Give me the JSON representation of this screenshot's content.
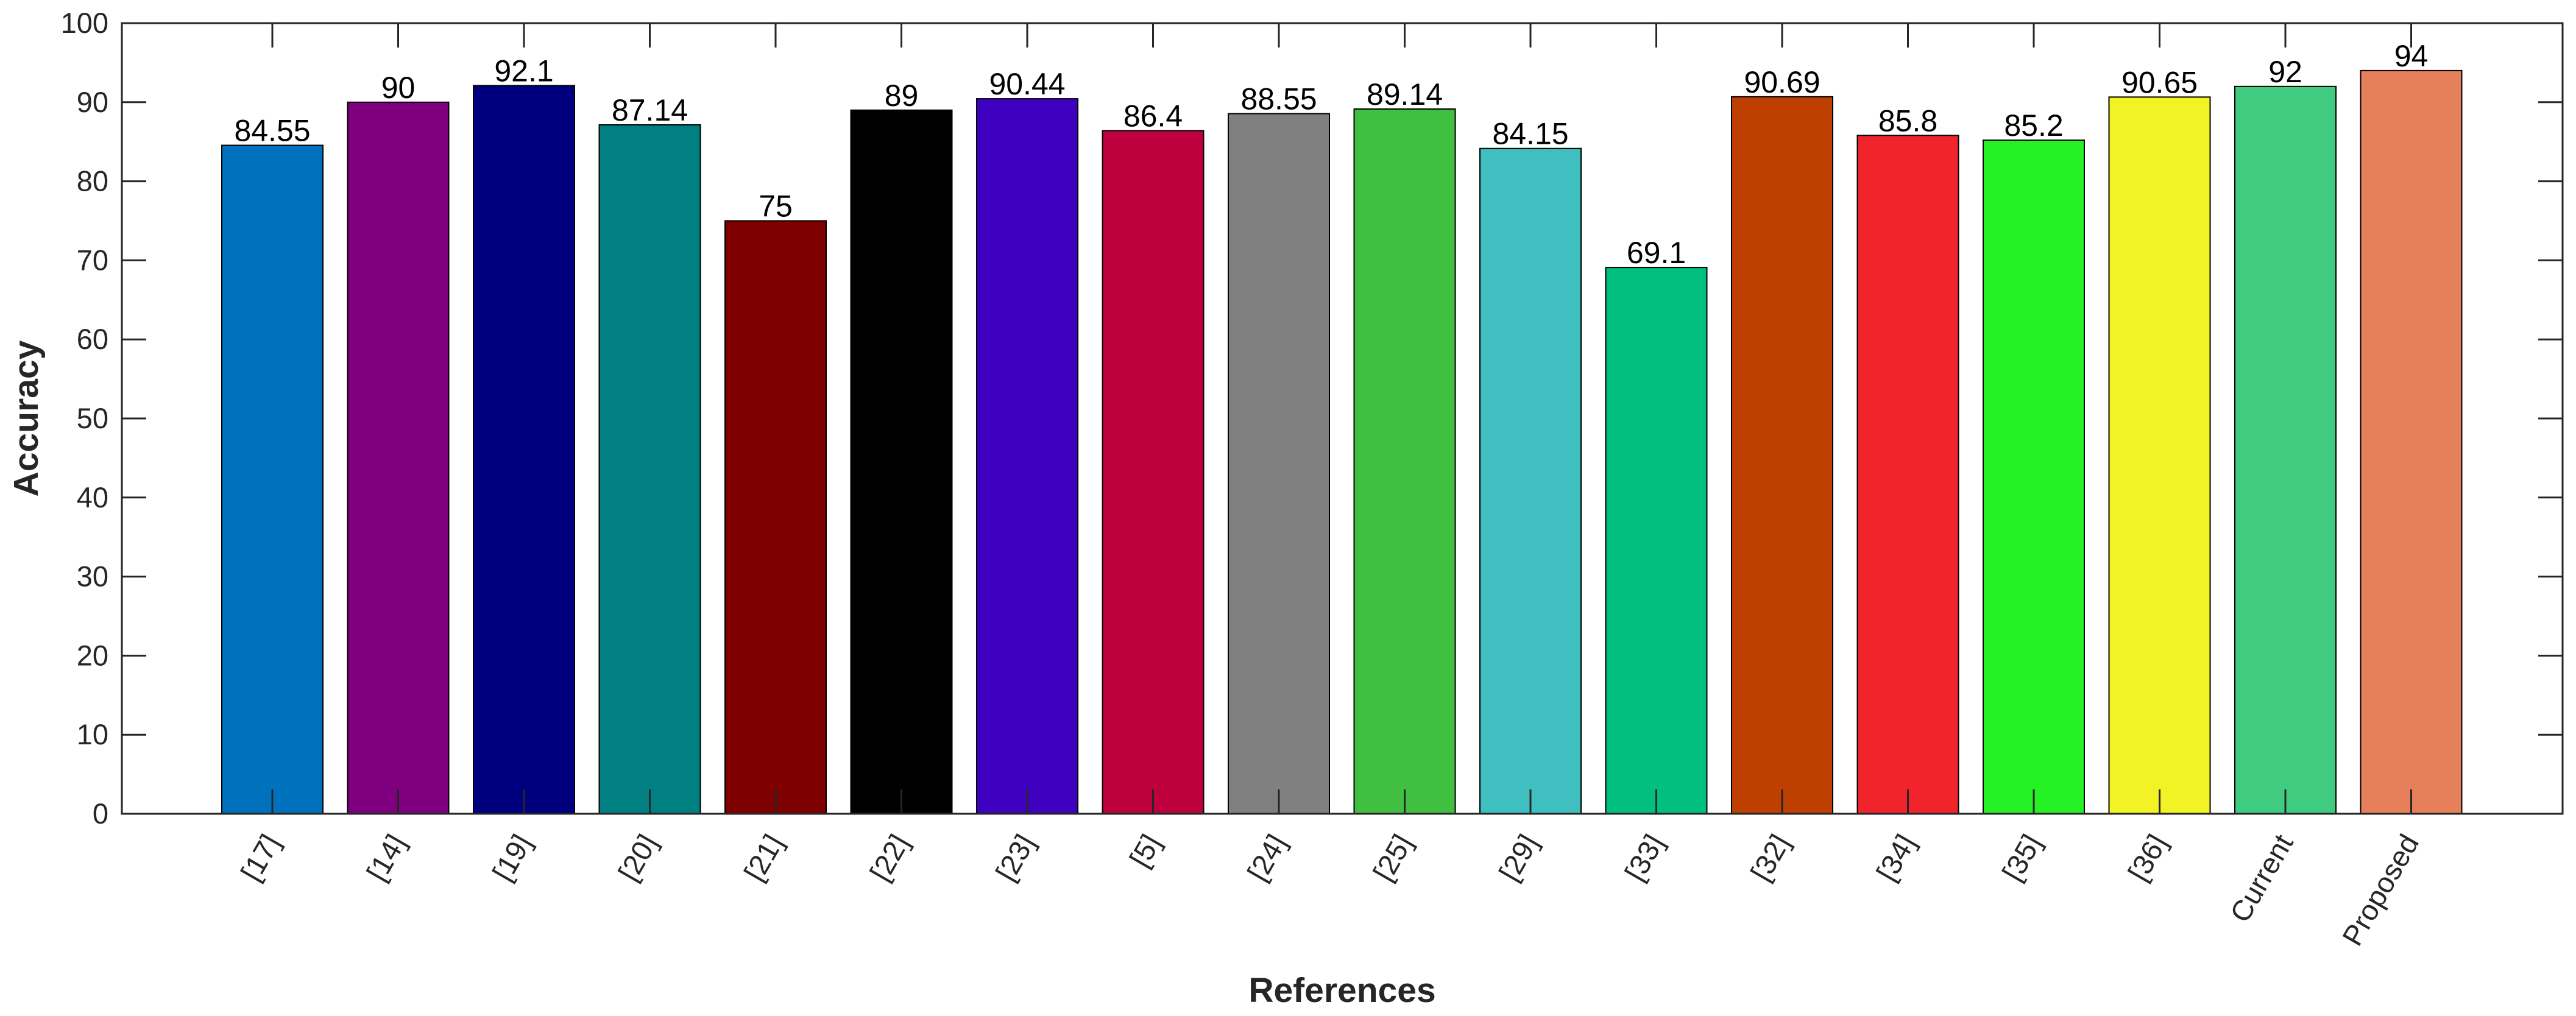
{
  "chart_data": {
    "type": "bar",
    "title": "",
    "xlabel": "References",
    "ylabel": "Accuracy",
    "ylim": [
      0,
      100
    ],
    "yticks": [
      0,
      10,
      20,
      30,
      40,
      50,
      60,
      70,
      80,
      90,
      100
    ],
    "ytick_labels": [
      "0",
      "10",
      "20",
      "30",
      "40",
      "50",
      "60",
      "70",
      "80",
      "90",
      "100"
    ],
    "grid": false,
    "categories": [
      "[17]",
      "[14]",
      "[19]",
      "[20]",
      "[21]",
      "[22]",
      "[23]",
      "[5]",
      "[24]",
      "[25]",
      "[29]",
      "[33]",
      "[32]",
      "[34]",
      "[35]",
      "[36]",
      "Current",
      "Proposed"
    ],
    "values": [
      84.55,
      90,
      92.1,
      87.14,
      75,
      89,
      90.44,
      86.4,
      88.55,
      89.14,
      84.15,
      69.1,
      90.69,
      85.8,
      85.2,
      90.65,
      92,
      94
    ],
    "value_labels": [
      "84.55",
      "90",
      "92.1",
      "87.14",
      "75",
      "89",
      "90.44",
      "86.4",
      "88.55",
      "89.14",
      "84.15",
      "69.1",
      "90.69",
      "85.8",
      "85.2",
      "90.65",
      "92",
      "94"
    ],
    "colors": [
      "#0072BD",
      "#7E007E",
      "#00007E",
      "#008080",
      "#7E0000",
      "#000000",
      "#3F00C0",
      "#BF003F",
      "#808080",
      "#40BF40",
      "#3FBFBF",
      "#00BF7F",
      "#BF3F00",
      "#F2242B",
      "#24F224",
      "#F2F224",
      "#3FCC80",
      "#E6805A"
    ]
  }
}
